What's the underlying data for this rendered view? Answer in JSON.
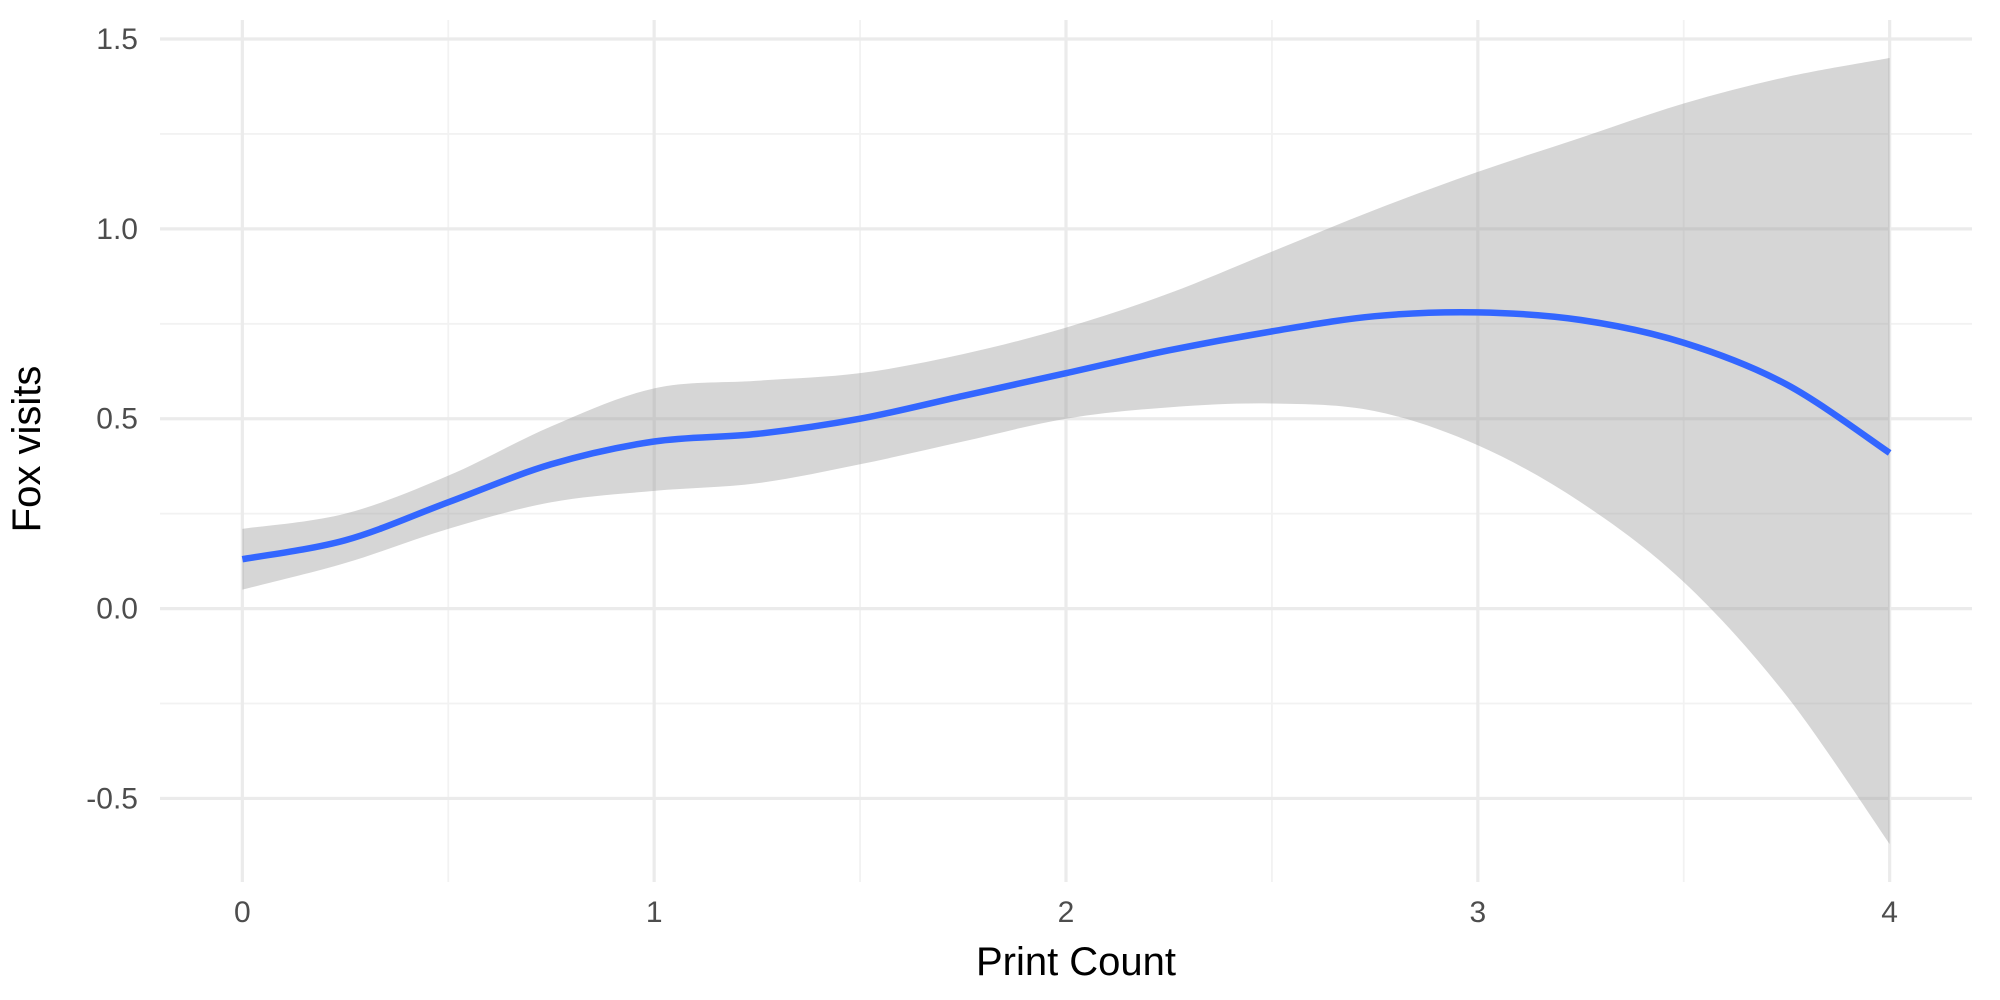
{
  "chart_data": {
    "type": "line",
    "title": "",
    "xlabel": "Print Count",
    "ylabel": "Fox visits",
    "xlim": [
      -0.2,
      4.2
    ],
    "ylim": [
      -0.72,
      1.55
    ],
    "x_ticks": [
      0,
      1,
      2,
      3,
      4
    ],
    "x_tick_labels": [
      "0",
      "1",
      "2",
      "3",
      "4"
    ],
    "y_ticks": [
      -0.5,
      0.0,
      0.5,
      1.0,
      1.5
    ],
    "y_tick_labels": [
      "-0.5",
      "0.0",
      "0.5",
      "1.0",
      "1.5"
    ],
    "grid": true,
    "legend": "none",
    "series": [
      {
        "color": "#3366ff",
        "x": [
          0.0,
          0.25,
          0.5,
          0.75,
          1.0,
          1.25,
          1.5,
          1.75,
          2.0,
          2.25,
          2.5,
          2.75,
          3.0,
          3.25,
          3.5,
          3.75,
          4.0
        ],
        "y": [
          0.13,
          0.18,
          0.28,
          0.38,
          0.44,
          0.46,
          0.5,
          0.56,
          0.62,
          0.68,
          0.73,
          0.77,
          0.78,
          0.76,
          0.7,
          0.59,
          0.41
        ],
        "ymin": [
          0.05,
          0.12,
          0.21,
          0.28,
          0.31,
          0.33,
          0.38,
          0.44,
          0.5,
          0.53,
          0.54,
          0.52,
          0.43,
          0.28,
          0.07,
          -0.23,
          -0.62
        ],
        "ymax": [
          0.21,
          0.25,
          0.35,
          0.48,
          0.58,
          0.6,
          0.62,
          0.67,
          0.74,
          0.83,
          0.94,
          1.05,
          1.15,
          1.24,
          1.33,
          1.4,
          1.45
        ]
      }
    ]
  }
}
